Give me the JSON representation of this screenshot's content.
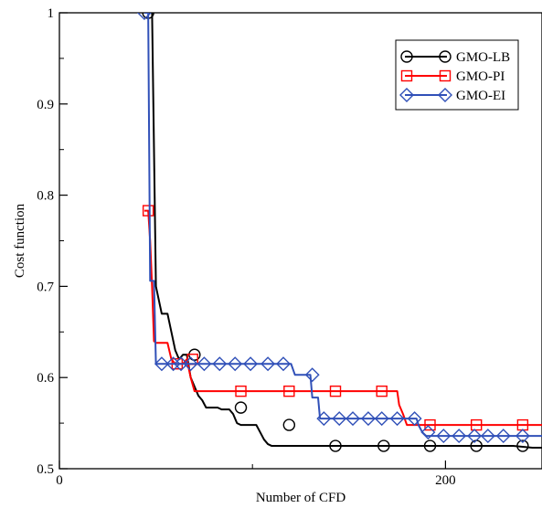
{
  "chart_data": {
    "type": "line",
    "title": "",
    "xlabel": "Number of CFD",
    "ylabel": "Cost function",
    "xlim": [
      0,
      250
    ],
    "ylim": [
      0.5,
      1.0
    ],
    "x_ticks": [
      0,
      200
    ],
    "x_tick_labels": [
      "0",
      "200"
    ],
    "y_ticks": [
      0.5,
      0.6,
      0.7,
      0.8,
      0.9,
      1.0
    ],
    "y_tick_labels": [
      "0.5",
      "0.6",
      "0.7",
      "0.8",
      "0.9",
      "1"
    ],
    "grid": false,
    "legend_position": "top-right",
    "series": [
      {
        "name": "GMO-LB",
        "color": "#000000",
        "marker": "circle",
        "x": [
          45,
          46,
          47,
          48,
          49,
          50,
          51,
          52,
          53,
          54,
          56,
          58,
          60,
          62,
          64,
          66,
          68,
          70,
          72,
          74,
          76,
          78,
          80,
          82,
          84,
          86,
          88,
          90,
          92,
          94,
          96,
          98,
          100,
          102,
          104,
          106,
          108,
          110,
          112,
          115,
          118,
          121,
          124,
          127,
          130,
          133,
          136,
          140,
          144,
          148,
          152,
          156,
          160,
          165,
          170,
          175,
          180,
          185,
          190,
          195,
          200,
          205,
          210,
          215,
          220,
          225,
          230,
          235,
          240,
          245,
          250
        ],
        "y": [
          1.0,
          1.0,
          1.0,
          1.0,
          0.85,
          0.7,
          0.69,
          0.68,
          0.67,
          0.67,
          0.67,
          0.65,
          0.63,
          0.62,
          0.625,
          0.625,
          0.6,
          0.59,
          0.58,
          0.575,
          0.567,
          0.567,
          0.567,
          0.567,
          0.565,
          0.565,
          0.565,
          0.56,
          0.55,
          0.548,
          0.548,
          0.548,
          0.548,
          0.548,
          0.54,
          0.532,
          0.527,
          0.525,
          0.525,
          0.525,
          0.525,
          0.525,
          0.525,
          0.525,
          0.525,
          0.525,
          0.525,
          0.525,
          0.525,
          0.525,
          0.525,
          0.525,
          0.525,
          0.525,
          0.525,
          0.525,
          0.525,
          0.525,
          0.525,
          0.525,
          0.525,
          0.525,
          0.525,
          0.525,
          0.525,
          0.525,
          0.525,
          0.525,
          0.524,
          0.523,
          0.523
        ],
        "marker_x": [
          46,
          70,
          94,
          119,
          143,
          168,
          192,
          216,
          240
        ],
        "marker_y": [
          1.0,
          0.625,
          0.567,
          0.548,
          0.525,
          0.525,
          0.525,
          0.525,
          0.525
        ]
      },
      {
        "name": "GMO-PI",
        "color": "#ff0000",
        "marker": "square",
        "x": [
          44,
          45,
          46,
          47,
          48,
          49,
          50,
          51,
          52,
          53,
          54,
          56,
          58,
          60,
          62,
          64,
          66,
          68,
          70,
          72,
          74,
          76,
          78,
          80,
          90,
          100,
          110,
          120,
          130,
          140,
          150,
          160,
          170,
          175,
          176,
          178,
          180,
          190,
          200,
          210,
          220,
          230,
          240,
          250
        ],
        "y": [
          0.783,
          0.783,
          0.783,
          0.75,
          0.7,
          0.64,
          0.638,
          0.638,
          0.638,
          0.638,
          0.638,
          0.638,
          0.62,
          0.615,
          0.615,
          0.615,
          0.62,
          0.6,
          0.585,
          0.585,
          0.585,
          0.585,
          0.585,
          0.585,
          0.585,
          0.585,
          0.585,
          0.585,
          0.585,
          0.585,
          0.585,
          0.585,
          0.585,
          0.585,
          0.57,
          0.56,
          0.548,
          0.548,
          0.548,
          0.548,
          0.548,
          0.548,
          0.548,
          0.548
        ],
        "marker_x": [
          46,
          61,
          69,
          94,
          119,
          143,
          167,
          192,
          216,
          240
        ],
        "marker_y": [
          0.783,
          0.615,
          0.62,
          0.585,
          0.585,
          0.585,
          0.585,
          0.548,
          0.548,
          0.548
        ]
      },
      {
        "name": "GMO-EI",
        "color": "#3050b8",
        "marker": "diamond",
        "x": [
          44,
          45,
          46,
          47,
          48,
          49,
          50,
          54,
          56,
          58,
          60,
          62,
          64,
          66,
          68,
          70,
          72,
          80,
          90,
          100,
          110,
          120,
          122,
          126,
          130,
          131,
          134,
          135,
          138,
          142,
          150,
          160,
          170,
          180,
          185,
          186,
          188,
          190,
          200,
          210,
          220,
          230,
          240,
          250
        ],
        "y": [
          1.0,
          1.0,
          1.0,
          0.706,
          0.706,
          0.706,
          0.615,
          0.615,
          0.615,
          0.615,
          0.615,
          0.615,
          0.615,
          0.615,
          0.615,
          0.615,
          0.615,
          0.615,
          0.615,
          0.615,
          0.615,
          0.615,
          0.603,
          0.603,
          0.603,
          0.578,
          0.578,
          0.555,
          0.555,
          0.555,
          0.555,
          0.555,
          0.555,
          0.555,
          0.555,
          0.548,
          0.54,
          0.536,
          0.536,
          0.536,
          0.536,
          0.536,
          0.536,
          0.536
        ],
        "marker_x": [
          44,
          53,
          59,
          63,
          68,
          75,
          83,
          91,
          99,
          108,
          116,
          131,
          137,
          145,
          152,
          160,
          167,
          175,
          184,
          191,
          199,
          207,
          215,
          222,
          230,
          240
        ],
        "marker_y": [
          1.0,
          0.615,
          0.615,
          0.615,
          0.615,
          0.615,
          0.615,
          0.615,
          0.615,
          0.615,
          0.615,
          0.603,
          0.555,
          0.555,
          0.555,
          0.555,
          0.555,
          0.555,
          0.555,
          0.54,
          0.536,
          0.536,
          0.536,
          0.536,
          0.536,
          0.536
        ]
      }
    ]
  }
}
